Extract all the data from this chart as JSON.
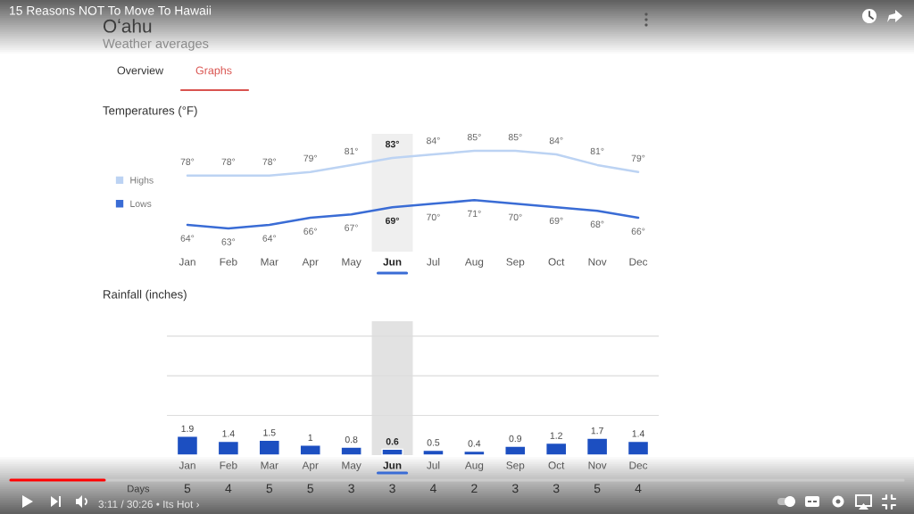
{
  "chart_data": [
    {
      "type": "line",
      "title": "Temperatures (°F)",
      "annotations": [
        "15 Reasons NOT To Move To Hawaii",
        "Oʻahu",
        "Weather averages",
        "Overview",
        "Graphs"
      ],
      "categories": [
        "Jan",
        "Feb",
        "Mar",
        "Apr",
        "May",
        "Jun",
        "Jul",
        "Aug",
        "Sep",
        "Oct",
        "Nov",
        "Dec"
      ],
      "series": [
        {
          "name": "Highs",
          "color": "#bcd3f3",
          "values": [
            78,
            78,
            78,
            79,
            81,
            83,
            84,
            85,
            85,
            84,
            81,
            79
          ],
          "value_labels": [
            "78°",
            "78°",
            "78°",
            "79°",
            "81°",
            "83°",
            "84°",
            "85°",
            "85°",
            "84°",
            "81°",
            "79°"
          ]
        },
        {
          "name": "Lows",
          "color": "#3a6cd5",
          "values": [
            64,
            63,
            64,
            66,
            67,
            69,
            70,
            71,
            70,
            69,
            68,
            66
          ],
          "value_labels": [
            "64°",
            "63°",
            "64°",
            "66°",
            "67°",
            "69°",
            "70°",
            "71°",
            "70°",
            "69°",
            "68°",
            "66°"
          ]
        }
      ],
      "legend": "left",
      "tick_labels": "x",
      "line_style": "solid",
      "bands": [
        {
          "axis": "x",
          "from": "Jun",
          "to": "Jun",
          "color": "#efefef"
        }
      ]
    },
    {
      "type": "bar",
      "title": "Rainfall (inches)",
      "categories": [
        "Jan",
        "Feb",
        "Mar",
        "Apr",
        "May",
        "Jun",
        "Jul",
        "Aug",
        "Sep",
        "Oct",
        "Nov",
        "Dec"
      ],
      "values": [
        1.9,
        1.4,
        1.5,
        1,
        0.8,
        0.6,
        0.5,
        0.4,
        0.9,
        1.2,
        1.7,
        1.4
      ],
      "color": "#1c4fc1",
      "data_labels": true,
      "ylim": [
        0,
        13.5
      ],
      "yticks": [
        {
          "value": 4,
          "label": null
        },
        {
          "value": 8,
          "label": null
        },
        {
          "value": 12,
          "label": null
        }
      ],
      "grid": "y",
      "tick_labels": "x",
      "bands": [
        {
          "axis": "x",
          "from": "Jun",
          "to": "Jun",
          "color": "#e2e2e2"
        }
      ]
    },
    {
      "type": "other",
      "ylabel": "Days",
      "categories": [
        null,
        null,
        null,
        null,
        null,
        null,
        null,
        null,
        null,
        null,
        null,
        null
      ],
      "values": [
        5,
        4,
        5,
        5,
        3,
        3,
        4,
        2,
        3,
        3,
        5,
        4
      ],
      "data_labels": true,
      "annotations": [
        "3:11 / 30:26 • Its Hot ›"
      ]
    }
  ]
}
